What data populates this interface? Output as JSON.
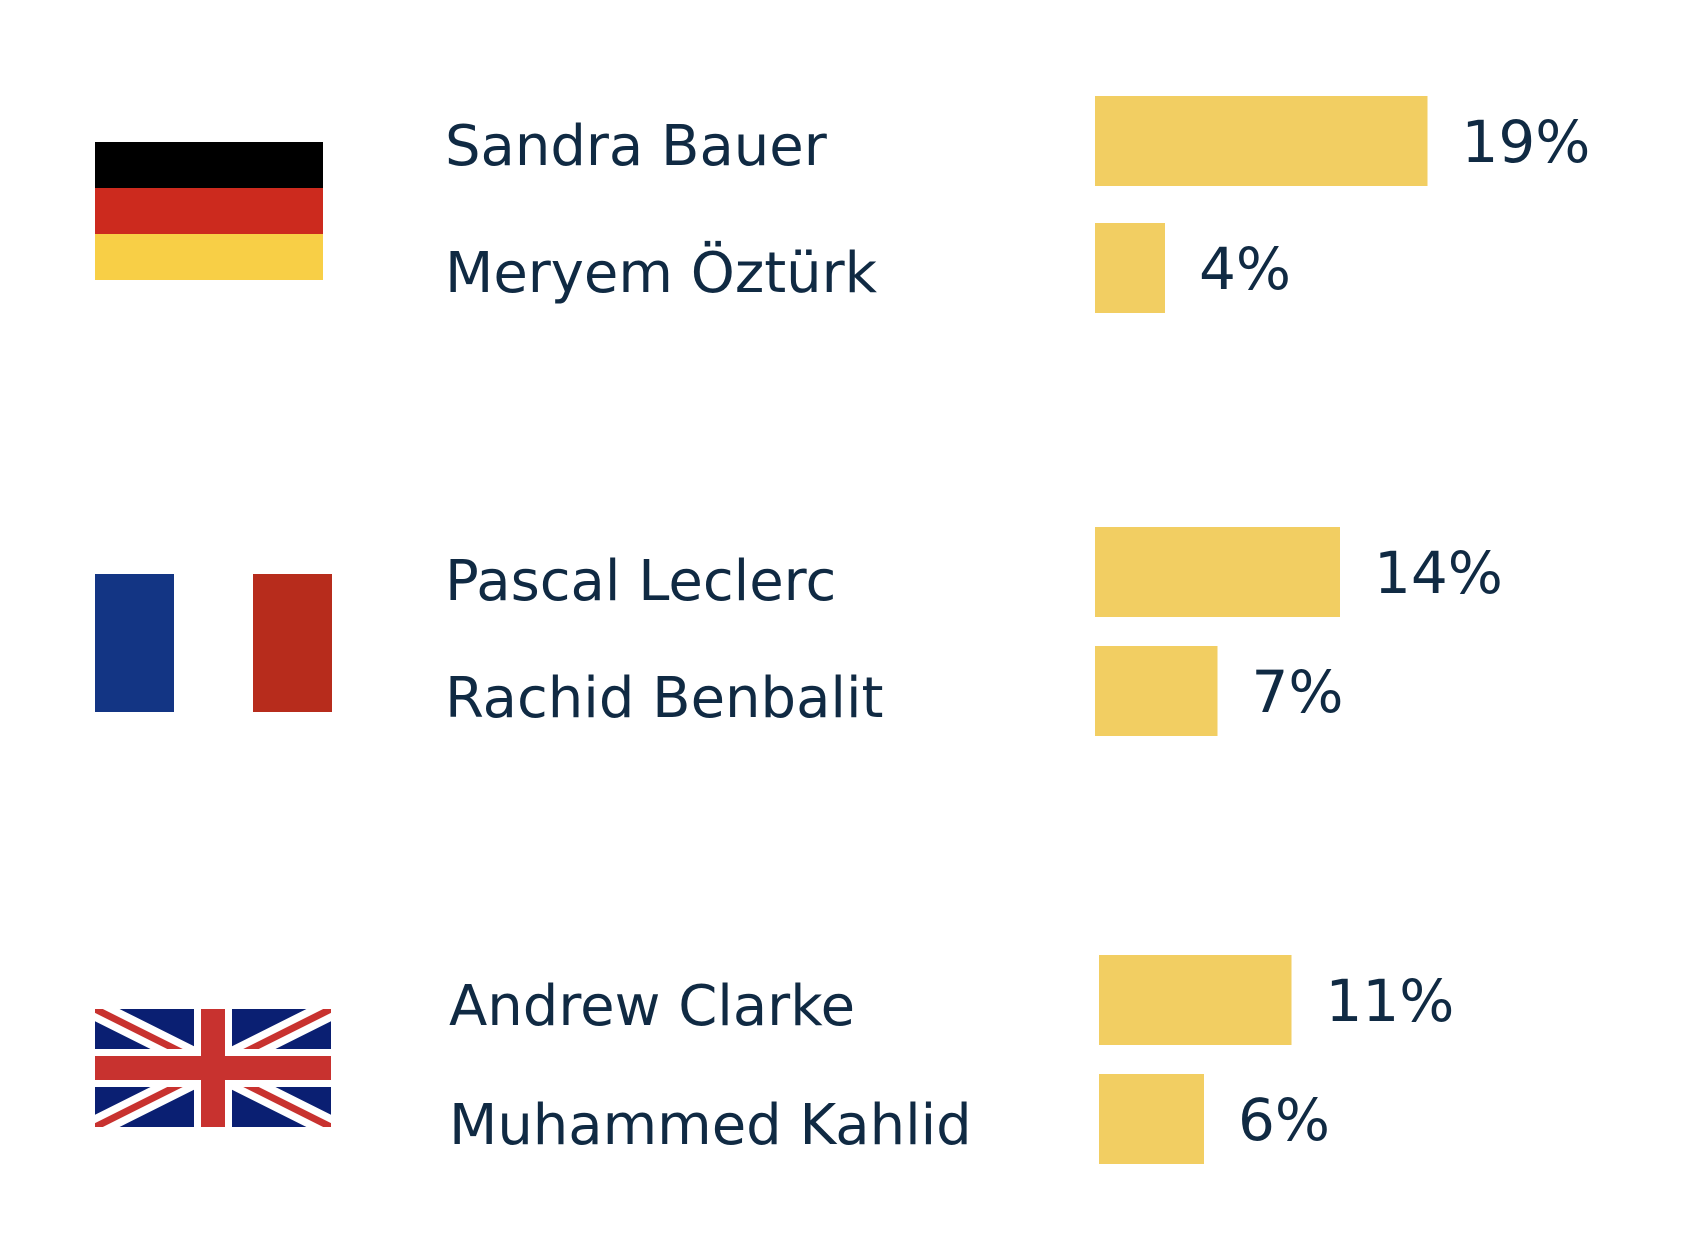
{
  "chart_data": {
    "type": "bar",
    "orientation": "horizontal",
    "unit": "%",
    "bar_color": "#f2ce62",
    "text_color": "#102a43",
    "groups": [
      {
        "flag": "germany-flag-icon",
        "flag_colors": [
          "#000000",
          "#cc2a1e",
          "#f8cf46"
        ],
        "entries": [
          {
            "name": "Sandra Bauer",
            "value": 19,
            "label": "19%"
          },
          {
            "name": "Meryem Öztürk",
            "value": 4,
            "label": "4%"
          }
        ]
      },
      {
        "flag": "france-flag-icon",
        "flag_colors": [
          "#133584",
          "#ffffff",
          "#b72c1c"
        ],
        "entries": [
          {
            "name": "Pascal Leclerc",
            "value": 14,
            "label": "14%"
          },
          {
            "name": "Rachid Benbalit",
            "value": 7,
            "label": "7%"
          }
        ]
      },
      {
        "flag": "uk-flag-icon",
        "flag_colors": [
          "#0a1f72",
          "#ffffff",
          "#c8322f"
        ],
        "entries": [
          {
            "name": "Andrew Clarke",
            "value": 11,
            "label": "11%"
          },
          {
            "name": "Muhammed Kahlid",
            "value": 6,
            "label": "6%"
          }
        ]
      }
    ]
  }
}
